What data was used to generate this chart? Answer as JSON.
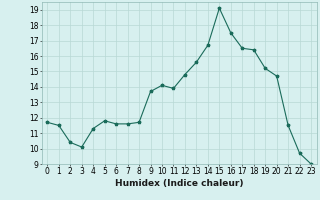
{
  "x": [
    0,
    1,
    2,
    3,
    4,
    5,
    6,
    7,
    8,
    9,
    10,
    11,
    12,
    13,
    14,
    15,
    16,
    17,
    18,
    19,
    20,
    21,
    22,
    23
  ],
  "y": [
    11.7,
    11.5,
    10.4,
    10.1,
    11.3,
    11.8,
    11.6,
    11.6,
    11.7,
    13.7,
    14.1,
    13.9,
    14.8,
    15.6,
    16.7,
    19.1,
    17.5,
    16.5,
    16.4,
    15.2,
    14.7,
    11.5,
    9.7,
    9.0
  ],
  "line_color": "#1a6b5a",
  "marker": "*",
  "marker_size": 2.5,
  "bg_color": "#d7f0ef",
  "grid_color": "#b8d8d5",
  "xlabel": "Humidex (Indice chaleur)",
  "ylim": [
    9,
    19.5
  ],
  "xlim": [
    -0.5,
    23.5
  ],
  "yticks": [
    9,
    10,
    11,
    12,
    13,
    14,
    15,
    16,
    17,
    18,
    19
  ],
  "xticks": [
    0,
    1,
    2,
    3,
    4,
    5,
    6,
    7,
    8,
    9,
    10,
    11,
    12,
    13,
    14,
    15,
    16,
    17,
    18,
    19,
    20,
    21,
    22,
    23
  ],
  "tick_fontsize": 5.5,
  "xlabel_fontsize": 6.5,
  "xlabel_fontweight": "bold"
}
